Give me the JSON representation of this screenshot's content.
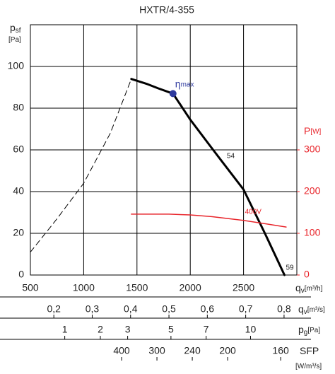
{
  "chart_data": {
    "type": "line",
    "title": "HXTR/4-355",
    "ylabel": {
      "symbol": "p",
      "subscript": "sf",
      "unit": "[Pa]"
    },
    "y2label": {
      "symbol": "P",
      "unit": "[W]"
    },
    "xlabel": {
      "symbol": "q",
      "subscript": "v",
      "unit": "[m³/h]"
    },
    "xlim": [
      500,
      3000
    ],
    "xticks": [
      500,
      1000,
      1500,
      2000,
      2500
    ],
    "ylim": [
      0,
      120
    ],
    "yticks": [
      0,
      20,
      40,
      60,
      80,
      100
    ],
    "y2lim": [
      0,
      600
    ],
    "y2ticks": [
      0,
      100,
      200,
      300
    ],
    "grid": true,
    "series": [
      {
        "name": "54",
        "color": "#000000",
        "style": "solid",
        "x": [
          1447,
          1600,
          1700,
          1838,
          2000,
          2200,
          2290,
          2500,
          2700,
          2884
        ],
        "values": [
          94,
          91.5,
          89.5,
          87,
          74.5,
          61,
          55,
          41,
          20,
          0
        ]
      },
      {
        "name": "59",
        "color": "#000000",
        "style": "dashed",
        "x": [
          500,
          750,
          1000,
          1250,
          1447
        ],
        "values": [
          11,
          27,
          44,
          68,
          94
        ]
      },
      {
        "name": "400V",
        "color": "#e8242a",
        "style": "solid",
        "axis": "y2",
        "x": [
          1447,
          1800,
          2000,
          2200,
          2500,
          2900
        ],
        "values": [
          146,
          146,
          144,
          140,
          131,
          115
        ]
      }
    ],
    "marker": {
      "label": {
        "symbol": "η",
        "subscript": "max"
      },
      "x": 1838,
      "y": 87,
      "color": "#2e3a9e"
    },
    "scales": [
      {
        "label": {
          "symbol": "q",
          "subscript": "v",
          "unit": "[m³/s]"
        },
        "scale": "linear",
        "lim": [
          0.1389,
          0.8333
        ],
        "ticks": [
          {
            "value": 0.2,
            "label": "0,2"
          },
          {
            "value": 0.3,
            "label": "0,3"
          },
          {
            "value": 0.4,
            "label": "0,4"
          },
          {
            "value": 0.5,
            "label": "0,5"
          },
          {
            "value": 0.6,
            "label": "0,6"
          },
          {
            "value": 0.7,
            "label": "0,7"
          },
          {
            "value": 0.8,
            "label": "0,8"
          }
        ]
      },
      {
        "label": {
          "symbol": "p",
          "subscript": "g",
          "unit": "[Pa]"
        },
        "scale": "sqrt",
        "lim": [
          0.36,
          13.7
        ],
        "ticks": [
          1,
          2,
          3,
          5,
          7,
          10
        ]
      },
      {
        "label": {
          "symbol": "SFP",
          "unit": "[W/m³/s]"
        },
        "scale": "reciprocal",
        "lim": [
          2857,
          150.8
        ],
        "ticks": [
          400,
          300,
          240,
          200,
          160
        ]
      }
    ]
  }
}
